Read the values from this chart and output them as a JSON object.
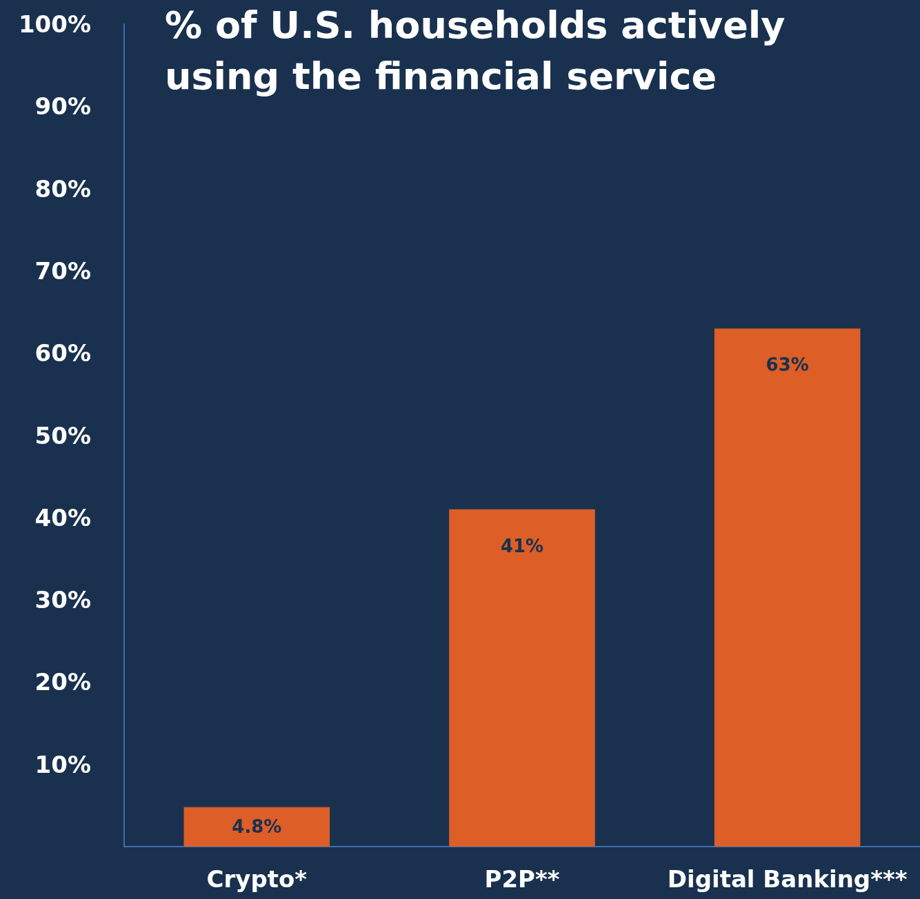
{
  "chart_data": {
    "type": "bar",
    "title": "% of U.S. households actively\nusing the financial service",
    "categories": [
      "Crypto*",
      "P2P**",
      "Digital Banking***"
    ],
    "values": [
      4.8,
      41,
      63
    ],
    "value_labels": [
      "4.8%",
      "41%",
      "63%"
    ],
    "color": "#dd5e27",
    "ylim": [
      0,
      100
    ],
    "yticks": [
      {
        "value": 10,
        "label": "10%"
      },
      {
        "value": 20,
        "label": "20%"
      },
      {
        "value": 30,
        "label": "30%"
      },
      {
        "value": 40,
        "label": "40%"
      },
      {
        "value": 50,
        "label": "50%"
      },
      {
        "value": 60,
        "label": "60%"
      },
      {
        "value": 70,
        "label": "70%"
      },
      {
        "value": 80,
        "label": "80%"
      },
      {
        "value": 90,
        "label": "90%"
      },
      {
        "value": 100,
        "label": "100%"
      }
    ],
    "grid": false
  }
}
